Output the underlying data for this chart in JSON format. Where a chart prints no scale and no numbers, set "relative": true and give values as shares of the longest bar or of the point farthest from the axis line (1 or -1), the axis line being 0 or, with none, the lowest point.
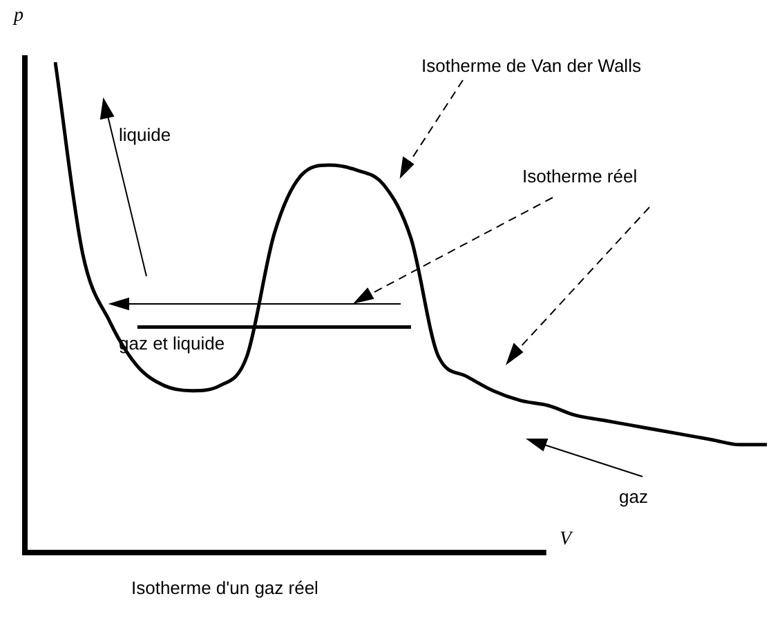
{
  "chart_data": {
    "type": "line",
    "relative": true,
    "marker": "none",
    "legend": false,
    "ylabel": "p",
    "xlabel": "V",
    "title": "Isotherme d'un gaz réel",
    "categories": [
      null,
      null,
      null,
      null,
      null,
      null,
      null,
      null,
      null,
      null,
      null,
      null,
      null,
      null,
      null,
      null,
      null,
      null,
      null,
      null,
      null,
      null,
      null,
      null,
      null,
      null,
      null
    ],
    "series": [
      {
        "color": "#000000",
        "values": [
          1.0,
          0.61,
          0.47,
          0.38,
          0.34,
          0.33,
          0.34,
          0.4,
          0.65,
          0.77,
          0.79,
          0.78,
          0.75,
          0.64,
          0.4,
          0.36,
          0.33,
          0.31,
          0.3,
          0.28,
          0.27,
          0.26,
          0.25,
          0.24,
          0.23,
          0.22,
          0.22
        ]
      },
      {
        "color": "#000000",
        "values": [
          null,
          null,
          null,
          0.46,
          0.46,
          0.46,
          0.46,
          0.46,
          0.46,
          0.46,
          0.46,
          0.46,
          0.46,
          0.46,
          null,
          null,
          null,
          null,
          null,
          null,
          null,
          null,
          null,
          null,
          null,
          null,
          null
        ]
      }
    ],
    "annotations": [
      "liquide",
      "Isotherme de Van der Walls",
      "Isotherme réel",
      "gaz et liquide",
      "gaz"
    ]
  }
}
